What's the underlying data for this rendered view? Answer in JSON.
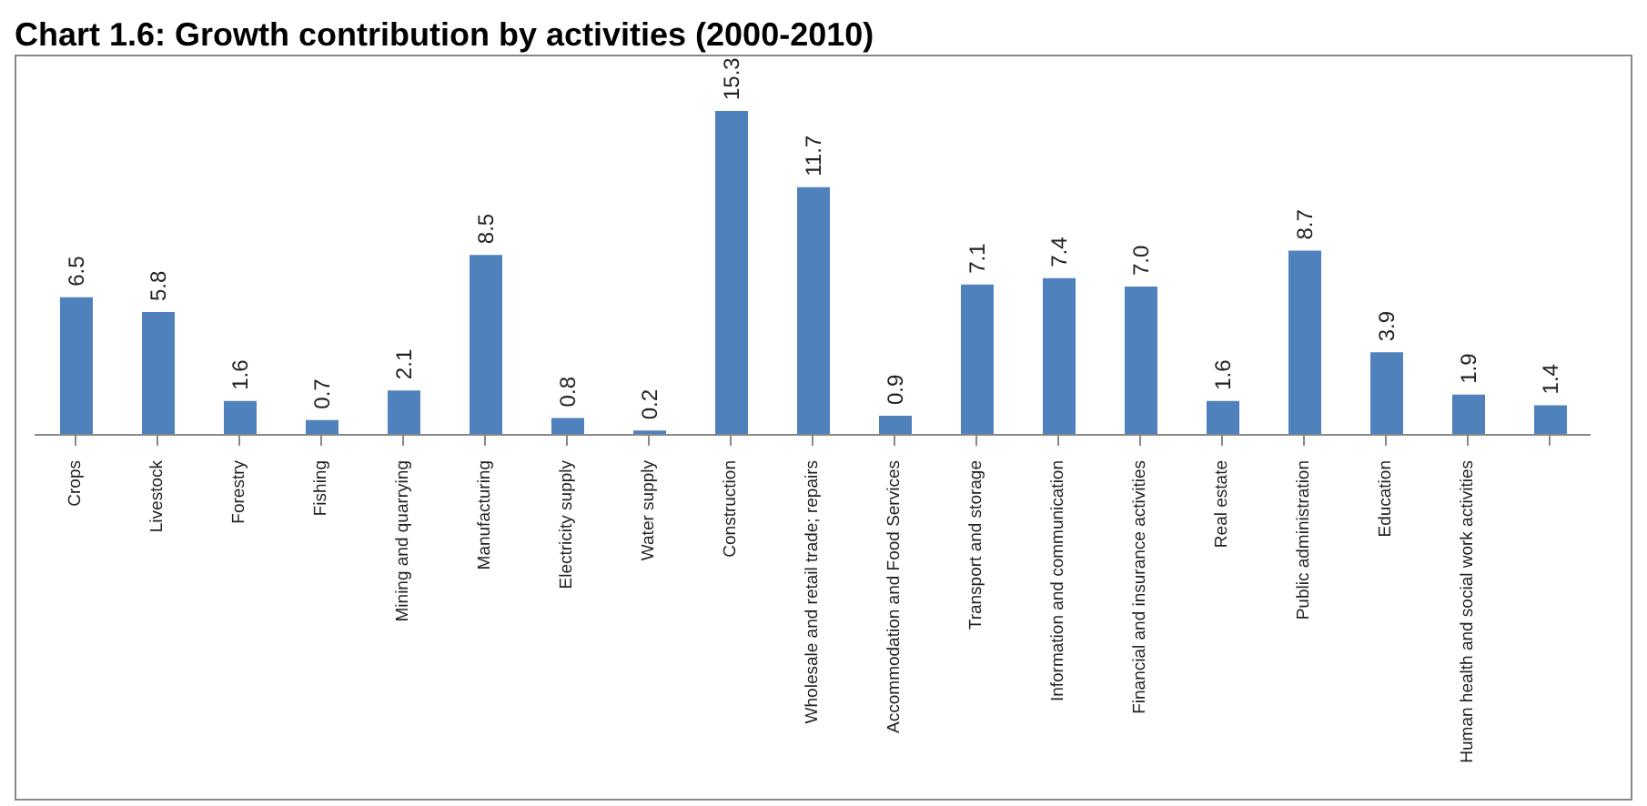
{
  "chart_data": {
    "type": "bar",
    "title": "Chart 1.6: Growth contribution by activities (2000-2010)",
    "categories": [
      "Crops",
      "Livestock",
      "Forestry",
      "Fishing",
      "Mining and quarrying",
      "Manufacturing",
      "Electricity supply",
      "Water supply",
      "Construction",
      "Wholesale and retail trade; repairs",
      "Accommodation and Food Services",
      "Transport and storage",
      "Information and communication",
      "Financial and insurance activities",
      "Real estate",
      "Public administration",
      "Education",
      "Human health and social work activities",
      null
    ],
    "values": [
      6.5,
      5.8,
      1.6,
      0.7,
      2.1,
      8.5,
      0.8,
      0.2,
      15.3,
      11.7,
      0.9,
      7.1,
      7.4,
      7.0,
      1.6,
      8.7,
      3.9,
      1.9,
      1.4
    ],
    "value_labels": [
      "6.5",
      "5.8",
      "1.6",
      "0.7",
      "2.1",
      "8.5",
      "0.8",
      "0.2",
      "15.3",
      "11.7",
      "0.9",
      "7.1",
      "7.4",
      "7.0",
      "1.6",
      "8.7",
      "3.9",
      "1.9",
      "1.4"
    ],
    "color": "#4f81bd",
    "grid": false,
    "legend": false
  }
}
